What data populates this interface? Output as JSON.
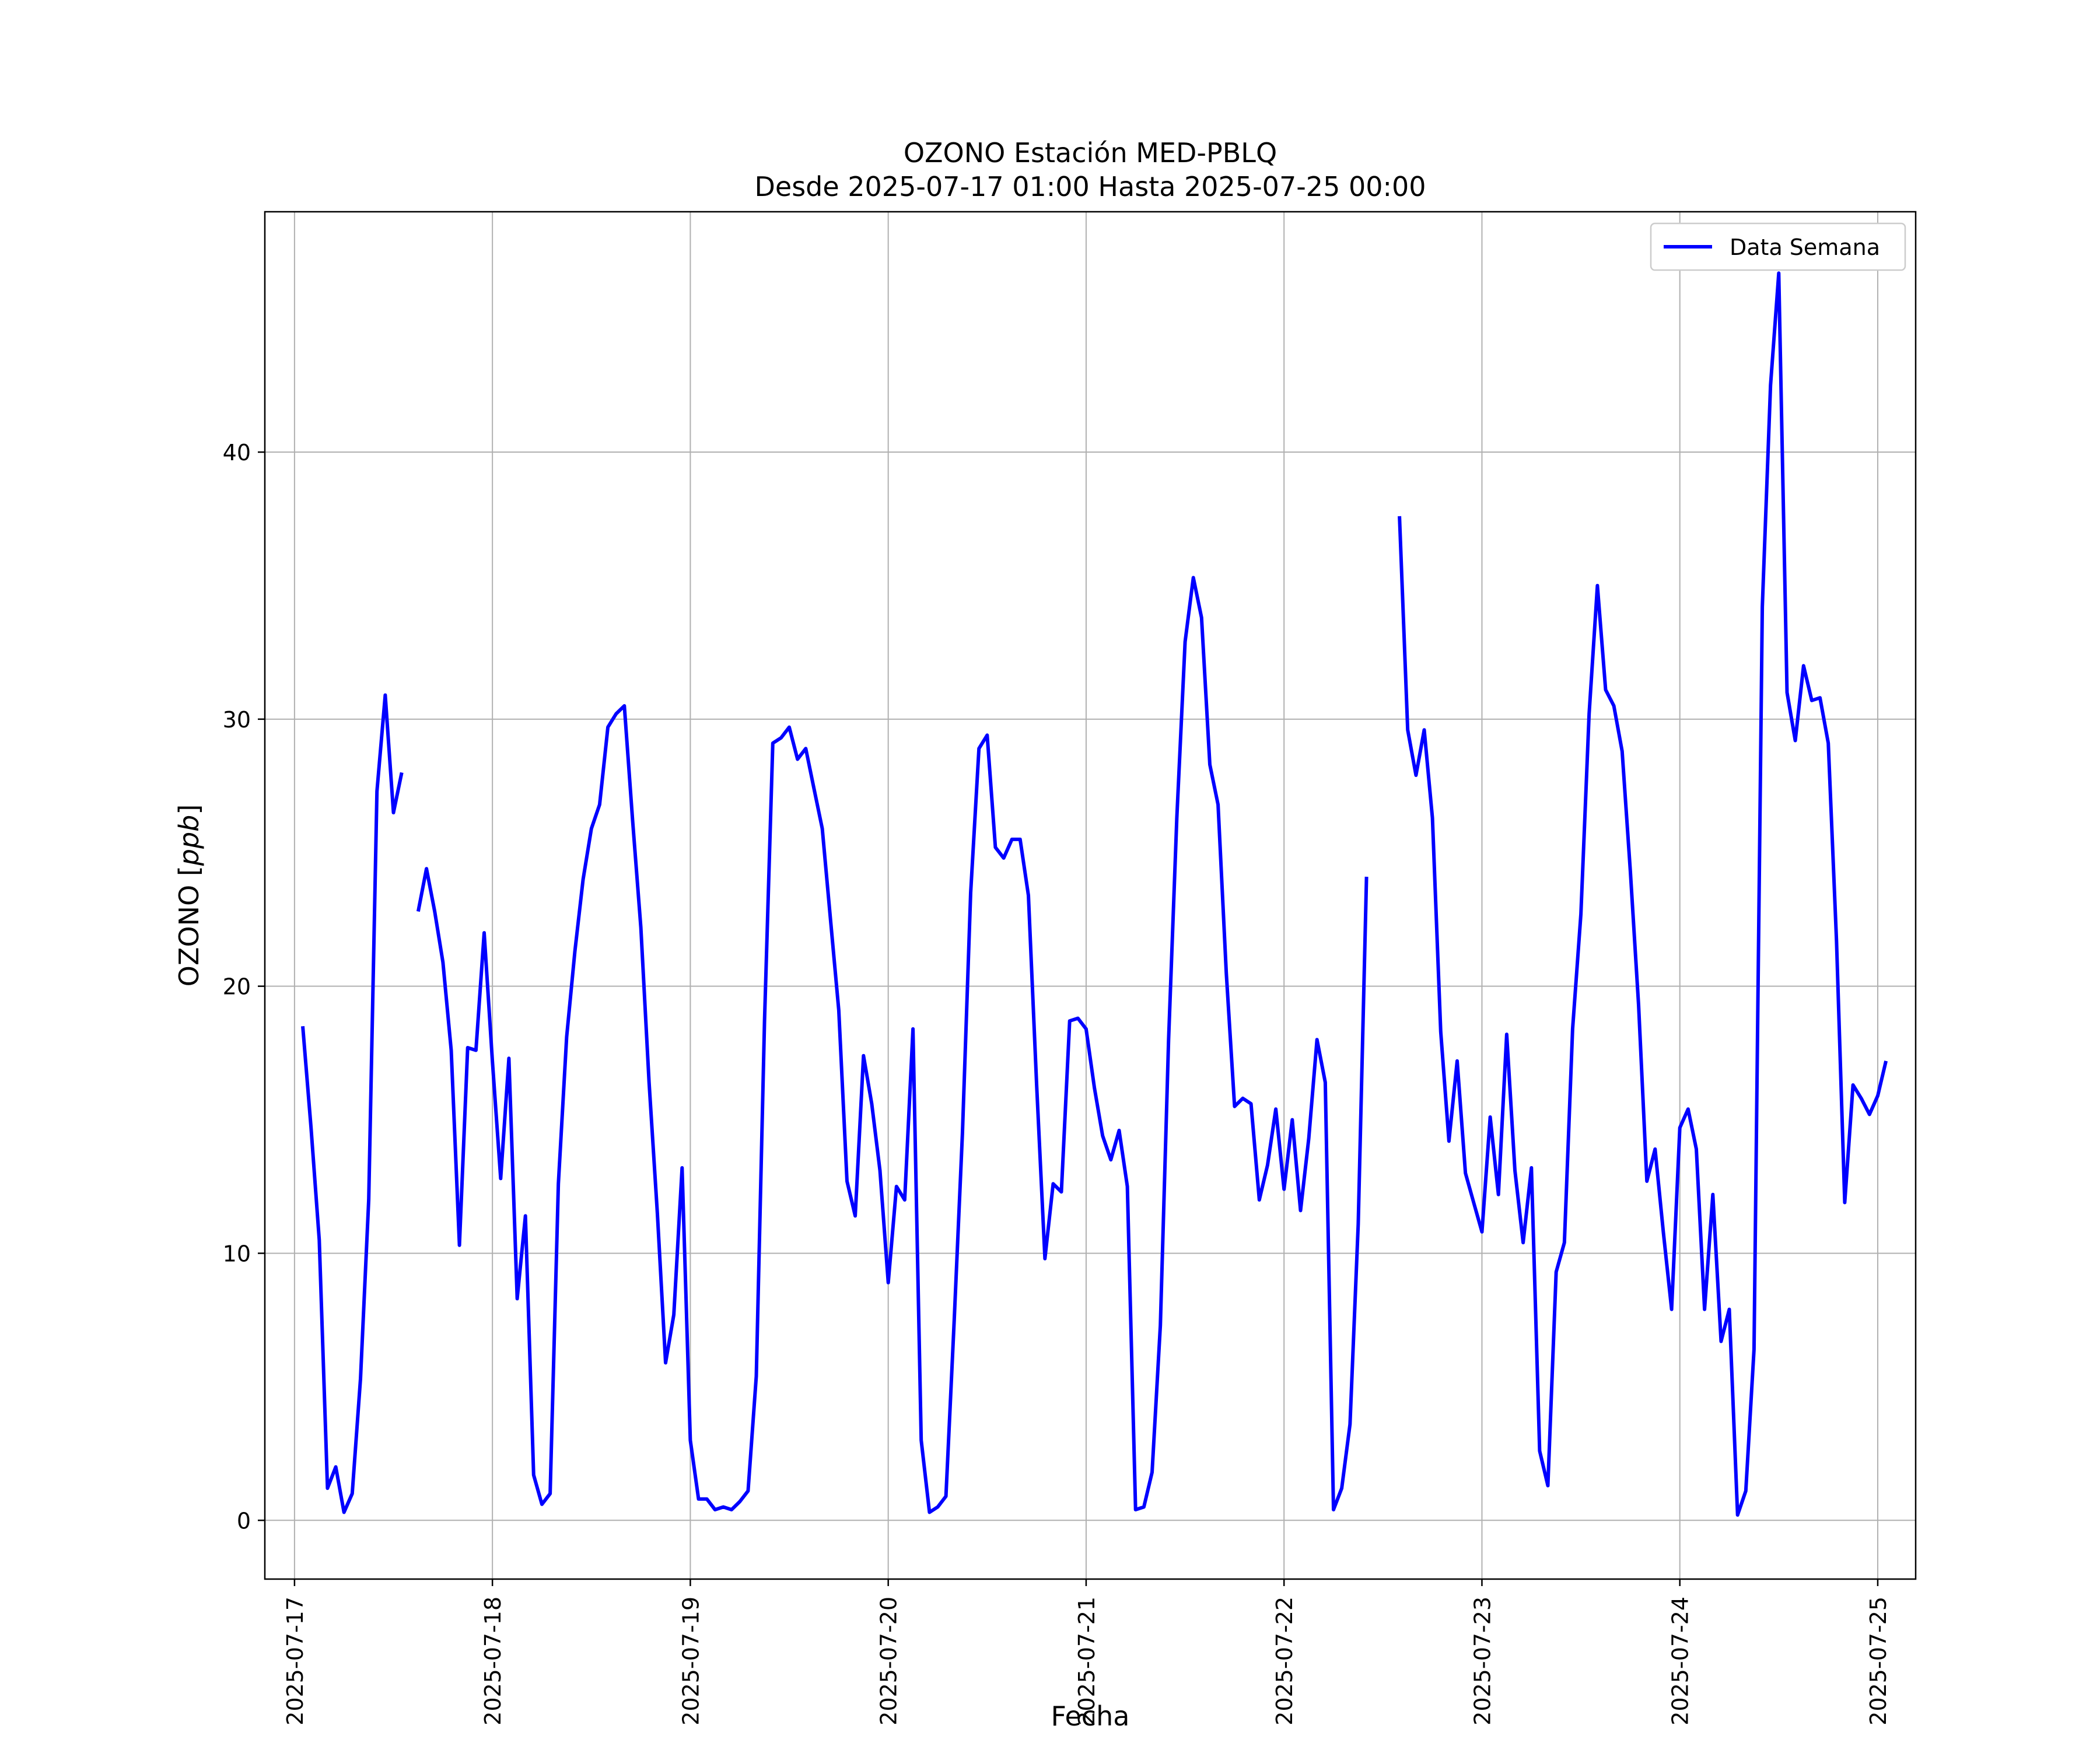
{
  "chart_data": {
    "type": "line",
    "title": "OZONO Estación MED-PBLQ",
    "subtitle": "Desde 2025-07-17 01:00 Hasta 2025-07-25 00:00",
    "xlabel": "Fecha",
    "ylabel": "OZONO [ppb]",
    "ylabel_main": "OZONO ",
    "ylabel_unit": "ppb",
    "xlim": [
      "2025-07-16 20:24",
      "2025-07-25 04:36"
    ],
    "ylim": [
      -2.2,
      49.0
    ],
    "x_ticks": [
      "2025-07-17",
      "2025-07-18",
      "2025-07-19",
      "2025-07-20",
      "2025-07-21",
      "2025-07-22",
      "2025-07-23",
      "2025-07-24",
      "2025-07-25"
    ],
    "y_ticks": [
      0,
      10,
      20,
      30,
      40
    ],
    "y_tick_labels": [
      "0",
      "10",
      "20",
      "30",
      "40"
    ],
    "grid": true,
    "legend_position": "top-right",
    "series": [
      {
        "name": "Data Semana",
        "color": "#0000ff",
        "start": "2025-07-17 01:00",
        "step_hours": 1,
        "values": [
          18.5,
          14.7,
          10.5,
          1.2,
          2.0,
          0.3,
          1.0,
          5.3,
          12.0,
          27.3,
          30.9,
          26.5,
          28.0,
          null,
          22.8,
          24.4,
          22.8,
          20.9,
          17.6,
          10.3,
          17.7,
          17.6,
          22.0,
          17.2,
          12.8,
          17.3,
          8.3,
          11.4,
          1.7,
          0.6,
          1.0,
          12.6,
          18.1,
          21.3,
          24.0,
          25.9,
          26.8,
          29.7,
          30.2,
          30.5,
          26.2,
          22.2,
          16.4,
          11.5,
          5.9,
          7.7,
          13.2,
          3.0,
          0.8,
          0.8,
          0.4,
          0.5,
          0.4,
          0.7,
          1.1,
          5.4,
          18.7,
          29.1,
          29.3,
          29.7,
          28.5,
          28.9,
          27.4,
          25.9,
          22.5,
          19.1,
          12.7,
          11.4,
          17.4,
          15.6,
          13.1,
          8.9,
          12.5,
          12.0,
          18.4,
          3.0,
          0.3,
          0.5,
          0.9,
          7.5,
          14.5,
          23.5,
          28.9,
          29.4,
          25.2,
          24.8,
          25.5,
          25.5,
          23.4,
          16.3,
          9.8,
          12.6,
          12.3,
          18.7,
          18.8,
          18.4,
          16.2,
          14.4,
          13.5,
          14.6,
          12.5,
          0.4,
          0.5,
          1.8,
          7.3,
          18.0,
          26.3,
          32.9,
          35.3,
          33.8,
          28.3,
          26.8,
          20.5,
          15.5,
          15.8,
          15.6,
          12.0,
          13.3,
          15.4,
          12.4,
          15.0,
          11.6,
          14.3,
          18.0,
          16.4,
          0.4,
          1.2,
          3.6,
          11.1,
          24.1,
          null,
          null,
          null,
          37.6,
          29.6,
          27.9,
          29.6,
          26.3,
          18.3,
          14.2,
          17.2,
          13.0,
          11.9,
          10.8,
          15.1,
          12.2,
          18.2,
          13.1,
          10.4,
          13.2,
          2.6,
          1.3,
          9.3,
          10.4,
          18.4,
          22.7,
          30.2,
          35.0,
          31.1,
          30.5,
          28.8,
          24.3,
          19.3,
          12.7,
          13.9,
          10.8,
          7.9,
          14.7,
          15.4,
          13.9,
          7.9,
          12.2,
          6.7,
          7.9,
          0.2,
          1.1,
          6.4,
          34.2,
          42.5,
          46.7,
          31.0,
          29.2,
          32.0,
          30.7,
          30.8,
          29.1,
          21.7,
          11.9,
          16.3,
          15.8,
          15.2,
          15.9,
          17.2
        ]
      }
    ]
  }
}
